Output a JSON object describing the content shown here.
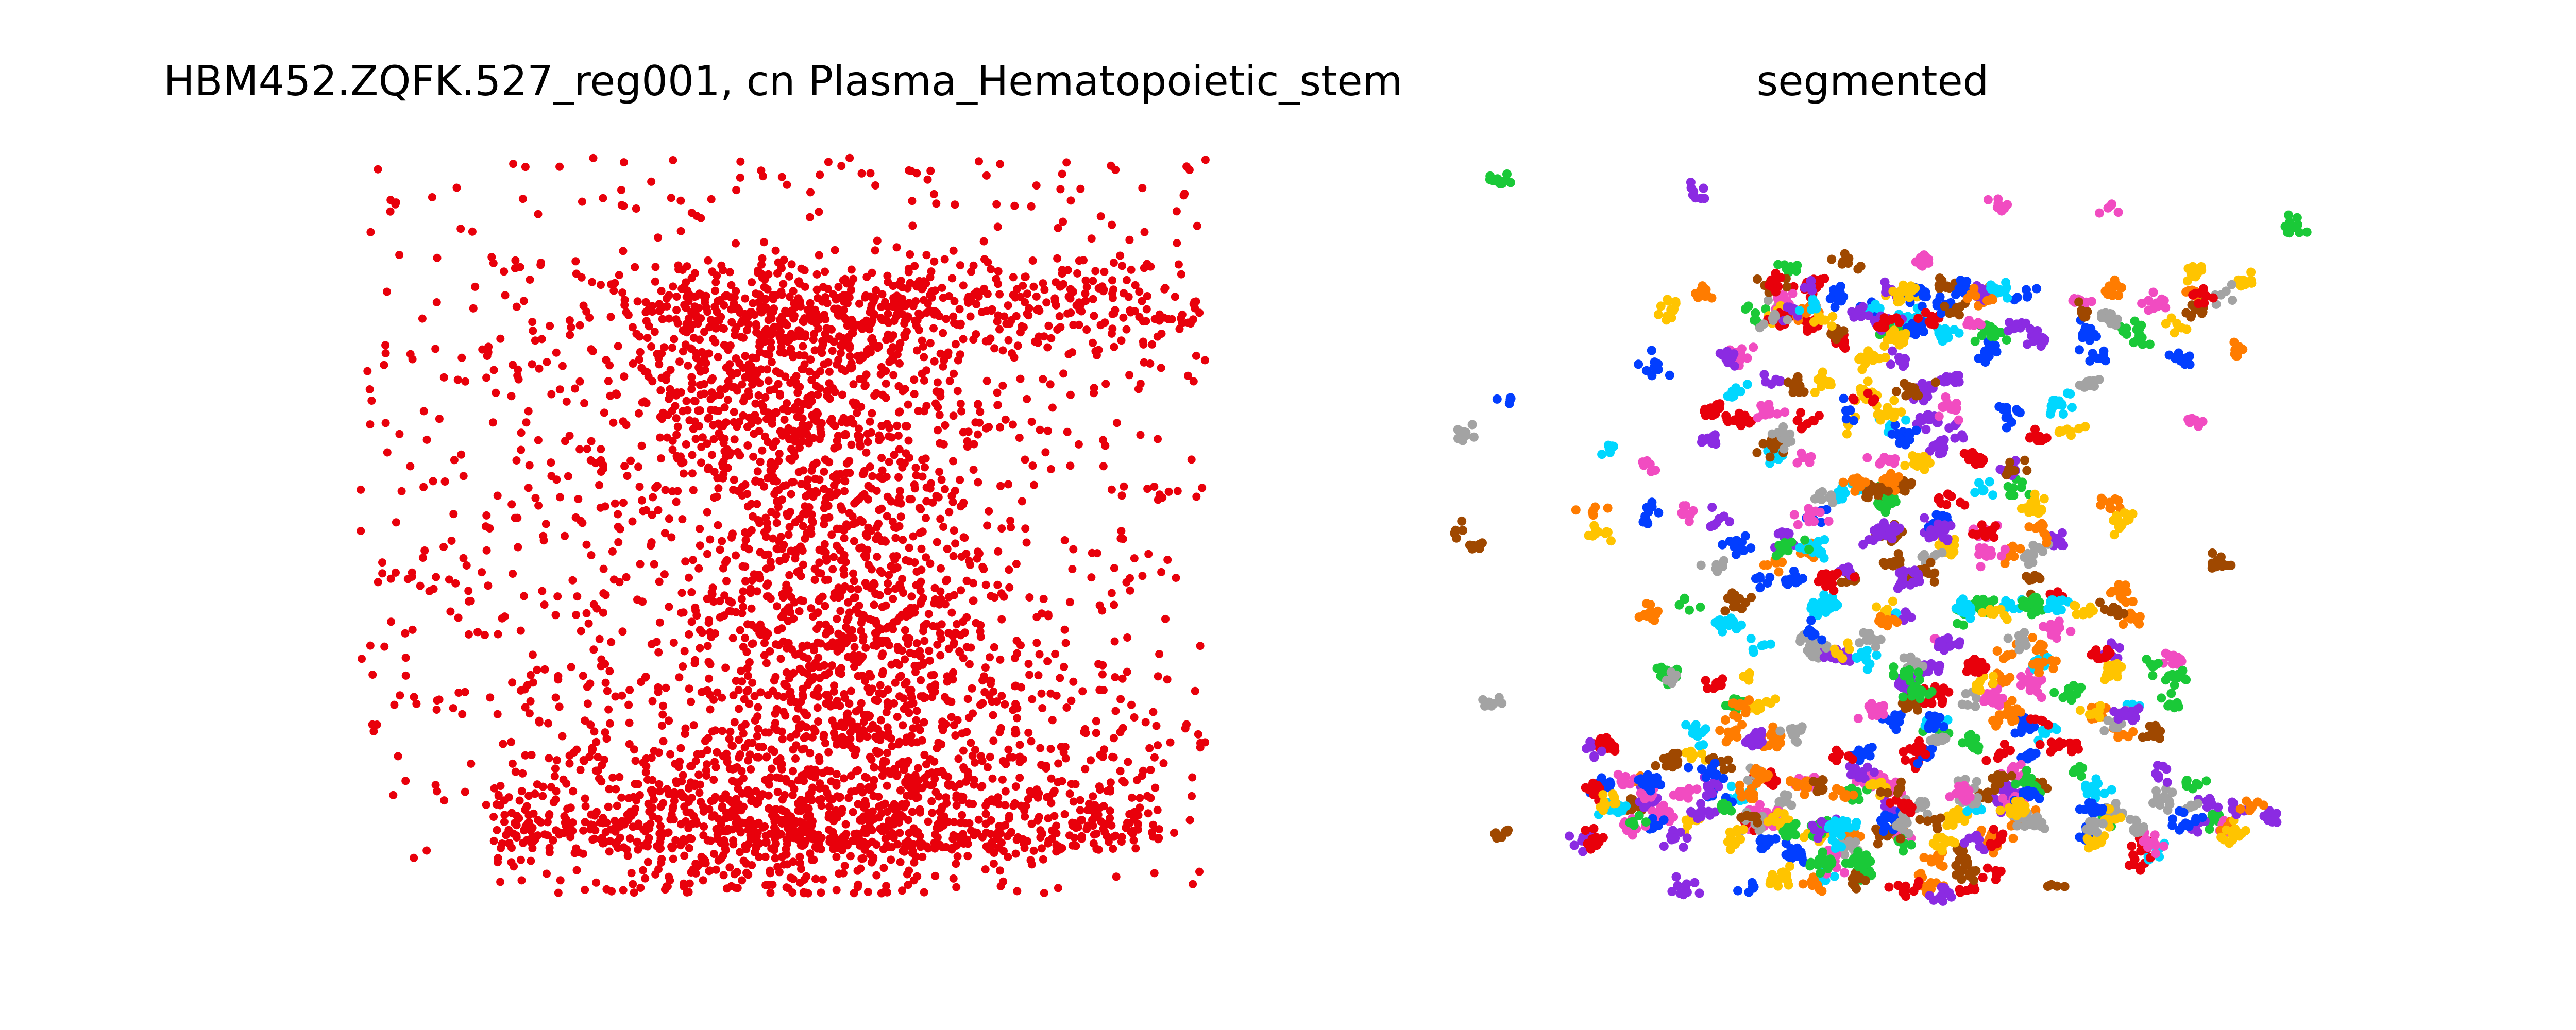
{
  "panels": [
    {
      "title": "HBM452.ZQFK.527_reg001, cn Plasma_Hematopoietic_stem",
      "point_color": "#e8000b"
    },
    {
      "title": "segmented",
      "cluster_palette": [
        "#e8000b",
        "#023eff",
        "#1ac938",
        "#8b2be2",
        "#9f4800",
        "#f14cc1",
        "#a3a3a3",
        "#ffc400",
        "#00d7ff",
        "#ff7c00"
      ]
    }
  ],
  "chart_data": [
    {
      "type": "scatter",
      "title": "HBM452.ZQFK.527_reg001, cn Plasma_Hematopoietic_stem",
      "xlabel": "",
      "ylabel": "",
      "axes": "off",
      "grid": false,
      "series": [
        {
          "color": "#e8000b",
          "description_of_density": "dense vertical band through center, sparser margins, dense bottom strip"
        }
      ]
    },
    {
      "type": "scatter",
      "title": "segmented",
      "xlabel": "",
      "ylabel": "",
      "axes": "off",
      "grid": false,
      "series": [
        {
          "colors": [
            "#e8000b",
            "#023eff",
            "#1ac938",
            "#8b2be2",
            "#9f4800",
            "#f14cc1",
            "#a3a3a3",
            "#ffc400",
            "#00d7ff",
            "#ff7c00"
          ]
        }
      ]
    }
  ]
}
